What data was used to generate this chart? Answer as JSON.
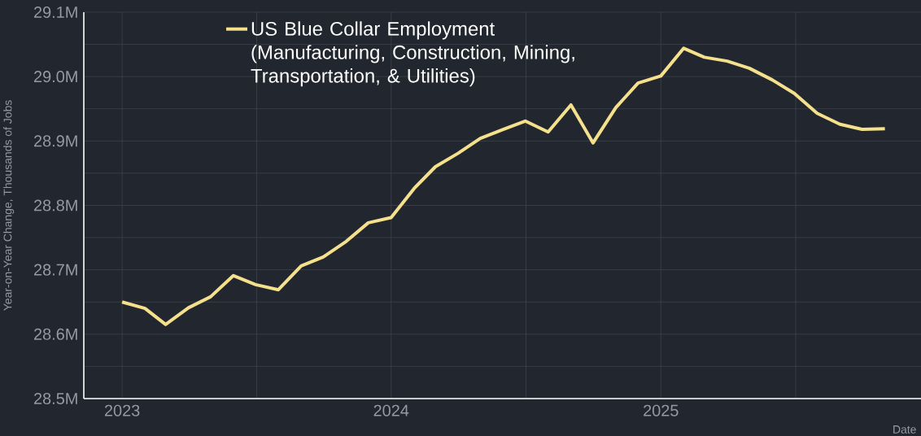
{
  "chart_data": {
    "type": "line",
    "xlabel": "Date",
    "ylabel": "Year-on-Year Change, Thousands of Jobs",
    "x": [
      "2023-01",
      "2023-02",
      "2023-03",
      "2023-04",
      "2023-05",
      "2023-06",
      "2023-07",
      "2023-08",
      "2023-09",
      "2023-10",
      "2023-11",
      "2023-12",
      "2024-01",
      "2024-02",
      "2024-03",
      "2024-04",
      "2024-05",
      "2024-06",
      "2024-07",
      "2024-08",
      "2024-09",
      "2024-10",
      "2024-11",
      "2024-12",
      "2025-01",
      "2025-02",
      "2025-03",
      "2025-04",
      "2025-05",
      "2025-06",
      "2025-07",
      "2025-08",
      "2025-09",
      "2025-10",
      "2025-11"
    ],
    "series": [
      {
        "name": "US Blue Collar Employment (Manufacturing, Construction, Mining, Transportation, & Utilities)",
        "color": "#f5e08c",
        "values": [
          28.65,
          28.64,
          28.615,
          28.641,
          28.658,
          28.691,
          28.677,
          28.669,
          28.706,
          28.72,
          28.744,
          28.773,
          28.781,
          28.826,
          28.86,
          28.881,
          28.904,
          28.918,
          28.931,
          28.914,
          28.956,
          28.897,
          28.952,
          28.99,
          29.001,
          29.044,
          29.03,
          29.024,
          29.013,
          28.995,
          28.974,
          28.943,
          28.926,
          28.918,
          28.919
        ]
      }
    ],
    "xlim": [
      "2022-11-10",
      "2025-12-20"
    ],
    "xticks": [
      {
        "value": "2023",
        "label": "2023"
      },
      {
        "value": "2024",
        "label": "2024"
      },
      {
        "value": "2025",
        "label": "2025"
      }
    ],
    "ylim": [
      28.5,
      29.1
    ],
    "yticks": [
      {
        "value": 28.5,
        "label": "28.5M"
      },
      {
        "value": 28.6,
        "label": "28.6M"
      },
      {
        "value": 28.7,
        "label": "28.7M"
      },
      {
        "value": 28.8,
        "label": "28.8M"
      },
      {
        "value": 28.9,
        "label": "28.9M"
      },
      {
        "value": 29.0,
        "label": "29.0M"
      },
      {
        "value": 29.1,
        "label": "29.1M"
      }
    ],
    "grid": true,
    "legend": "top left",
    "marker": "none",
    "line_style": "solid"
  }
}
